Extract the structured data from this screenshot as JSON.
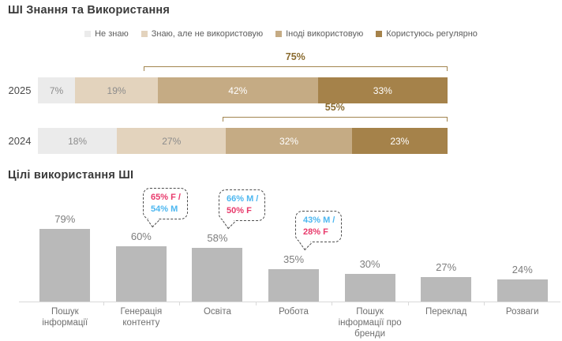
{
  "section1": {
    "title": "ШІ Знання та Використання",
    "unit": "%",
    "legend": [
      {
        "label": "Не знаю",
        "color": "#ebebeb"
      },
      {
        "label": "Знаю, але не використовую",
        "color": "#e3d3bd"
      },
      {
        "label": "Іноді використовую",
        "color": "#c5ab84"
      },
      {
        "label": "Користуюсь регулярно",
        "color": "#a5824a"
      }
    ],
    "rows": [
      {
        "year": "2025",
        "values": [
          7,
          19,
          42,
          33
        ],
        "bracket_label": "75%",
        "bracket_covers_last": 2
      },
      {
        "year": "2024",
        "values": [
          18,
          27,
          32,
          23
        ],
        "bracket_label": "55%",
        "bracket_covers_last": 2
      }
    ],
    "colors": {
      "bracket": "#a2854f",
      "bracket_label": "#8a6b2f",
      "segment_text_light": "#8c8c8c",
      "segment_text_dark": "#ffffff"
    }
  },
  "section2": {
    "title": "Цілі використання ШІ",
    "unit": "%",
    "bar_color": "#b9b9b9",
    "bars": [
      {
        "label": "Пошук інформації",
        "value": 79
      },
      {
        "label": "Генерація контенту",
        "value": 60,
        "callout": {
          "lines": [
            {
              "text": "65% F /",
              "color": "#e8396b"
            },
            {
              "text": "54% M",
              "color": "#4db7f0"
            }
          ]
        }
      },
      {
        "label": "Освіта",
        "value": 58,
        "callout": {
          "lines": [
            {
              "text": "66% M /",
              "color": "#4db7f0"
            },
            {
              "text": "50% F",
              "color": "#e8396b"
            }
          ]
        }
      },
      {
        "label": "Робота",
        "value": 35,
        "callout": {
          "lines": [
            {
              "text": "43% M /",
              "color": "#4db7f0"
            },
            {
              "text": "28% F",
              "color": "#e8396b"
            }
          ]
        }
      },
      {
        "label": "Пошук інформації про бренди",
        "value": 30
      },
      {
        "label": "Переклад",
        "value": 27
      },
      {
        "label": "Розваги",
        "value": 24
      }
    ]
  },
  "chart_data": [
    {
      "type": "bar",
      "subtype": "stacked-horizontal",
      "title": "ШІ Знання та Використання",
      "categories": [
        "2025",
        "2024"
      ],
      "series": [
        {
          "name": "Не знаю",
          "values": [
            7,
            18
          ]
        },
        {
          "name": "Знаю, але не використовую",
          "values": [
            19,
            27
          ]
        },
        {
          "name": "Іноді використовую",
          "values": [
            42,
            32
          ]
        },
        {
          "name": "Користуюсь регулярно",
          "values": [
            33,
            23
          ]
        }
      ],
      "annotations": [
        {
          "category": "2025",
          "label": "75%",
          "covers": [
            "Іноді використовую",
            "Користуюсь регулярно"
          ]
        },
        {
          "category": "2024",
          "label": "55%",
          "covers": [
            "Іноді використовую",
            "Користуюсь регулярно"
          ]
        }
      ],
      "legend_position": "top",
      "unit": "%"
    },
    {
      "type": "bar",
      "title": "Цілі використання ШІ",
      "categories": [
        "Пошук інформації",
        "Генерація контенту",
        "Освіта",
        "Робота",
        "Пошук інформації про бренди",
        "Переклад",
        "Розваги"
      ],
      "values": [
        79,
        60,
        58,
        35,
        30,
        27,
        24
      ],
      "unit": "%",
      "ylim": [
        0,
        100
      ],
      "grid": false,
      "annotations": [
        {
          "category": "Генерація контенту",
          "label": "65% F / 54% M"
        },
        {
          "category": "Освіта",
          "label": "66% M / 50% F"
        },
        {
          "category": "Робота",
          "label": "43% M / 28% F"
        }
      ]
    }
  ]
}
